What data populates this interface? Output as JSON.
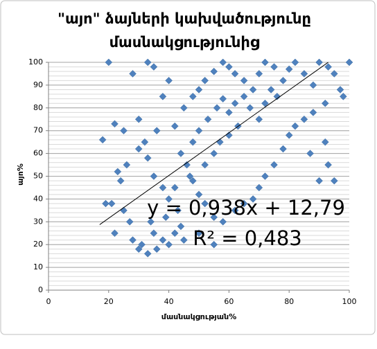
{
  "chart_data": {
    "type": "scatter",
    "title_lines": [
      "\"այո\" ձայների կախվածությունը",
      "մասնակցությունից"
    ],
    "x_label": "մասնակցության%",
    "y_label": "այո%",
    "color": "#4f81bd",
    "x": [
      20,
      28,
      33,
      35,
      40,
      38,
      30,
      22,
      18,
      25,
      26,
      24,
      23,
      19,
      21,
      22,
      25,
      27,
      28,
      30,
      31,
      33,
      35,
      36,
      38,
      40,
      42,
      44,
      45,
      43,
      40,
      38,
      35,
      33,
      30,
      32,
      36,
      42,
      45,
      48,
      50,
      52,
      55,
      58,
      60,
      62,
      65,
      68,
      70,
      72,
      75,
      78,
      80,
      82,
      85,
      88,
      90,
      93,
      95,
      97,
      100,
      98,
      92,
      88,
      85,
      82,
      80,
      78,
      75,
      72,
      70,
      68,
      65,
      62,
      58,
      55,
      52,
      50,
      48,
      46,
      44,
      48,
      50,
      53,
      56,
      58,
      60,
      62,
      65,
      67,
      70,
      72,
      74,
      76,
      55,
      57,
      60,
      63,
      52,
      47,
      42,
      39,
      34,
      50,
      55,
      90,
      95,
      87,
      93,
      92
    ],
    "values": [
      100,
      95,
      100,
      98,
      92,
      85,
      75,
      73,
      66,
      70,
      55,
      48,
      52,
      38,
      38,
      25,
      35,
      30,
      22,
      18,
      20,
      16,
      25,
      18,
      22,
      20,
      25,
      28,
      22,
      35,
      40,
      45,
      50,
      58,
      62,
      65,
      70,
      72,
      80,
      85,
      88,
      92,
      96,
      100,
      98,
      95,
      92,
      88,
      95,
      100,
      98,
      92,
      97,
      100,
      95,
      90,
      100,
      98,
      95,
      88,
      100,
      85,
      82,
      78,
      75,
      72,
      68,
      62,
      55,
      50,
      45,
      40,
      38,
      35,
      30,
      32,
      38,
      42,
      48,
      55,
      60,
      65,
      70,
      75,
      80,
      84,
      78,
      82,
      85,
      80,
      75,
      82,
      88,
      85,
      60,
      65,
      68,
      72,
      55,
      50,
      45,
      32,
      30,
      25,
      20,
      48,
      48,
      60,
      55,
      65
    ],
    "xlim": [
      0,
      100
    ],
    "ylim": [
      0,
      100
    ],
    "xticks": [
      0,
      20,
      40,
      60,
      80,
      100
    ],
    "yticks": [
      0,
      10,
      20,
      30,
      40,
      50,
      60,
      70,
      80,
      90,
      100
    ],
    "grid": true,
    "minor_grid_step": 2,
    "trendline": {
      "slope": 0.938,
      "intercept": 12.79,
      "x_range": [
        17,
        93
      ],
      "color": "#000000",
      "equation": "y = 0,938x + 12,79",
      "r2": "R² = 0,483"
    }
  }
}
